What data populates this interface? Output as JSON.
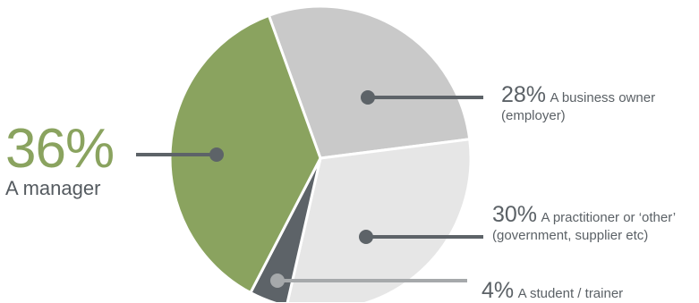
{
  "chart_data": {
    "type": "pie",
    "slices": [
      {
        "value": 36,
        "percent_label": "36%",
        "label": "A manager",
        "label_extra": "",
        "color": "#8aa35f"
      },
      {
        "value": 28,
        "percent_label": "28%",
        "label": "A business owner",
        "label_extra": "(employer)",
        "color": "#c9c9c9"
      },
      {
        "value": 30,
        "percent_label": "30%",
        "label": "A practitioner or ‘other’",
        "label_extra": "(government, supplier etc)",
        "color": "#e6e6e6"
      },
      {
        "value": 4,
        "percent_label": "4%",
        "label": "A student / trainer",
        "label_extra": "",
        "color": "#5d6368"
      }
    ],
    "leader_line_color": "#5d6368",
    "student_leader_color": "#a6a9ab"
  }
}
